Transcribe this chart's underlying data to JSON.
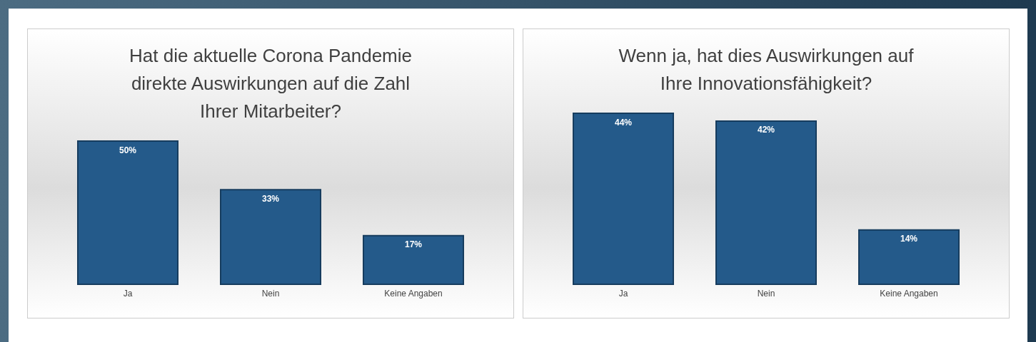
{
  "chart_data": [
    {
      "type": "bar",
      "title": "Hat die aktuelle Corona Pandemie\ndirekte Auswirkungen auf die Zahl\nIhrer Mitarbeiter?",
      "categories": [
        "Ja",
        "Nein",
        "Keine Angaben"
      ],
      "values": [
        50,
        33,
        17
      ],
      "value_labels": [
        "50%",
        "33%",
        "17%"
      ],
      "color": "#245a8a"
    },
    {
      "type": "bar",
      "title": "Wenn ja, hat dies Auswirkungen auf\nIhre Innovationsfähigkeit?",
      "categories": [
        "Ja",
        "Nein",
        "Keine Angaben"
      ],
      "values": [
        44,
        42,
        14
      ],
      "value_labels": [
        "44%",
        "42%",
        "14%"
      ],
      "color": "#245a8a"
    }
  ]
}
